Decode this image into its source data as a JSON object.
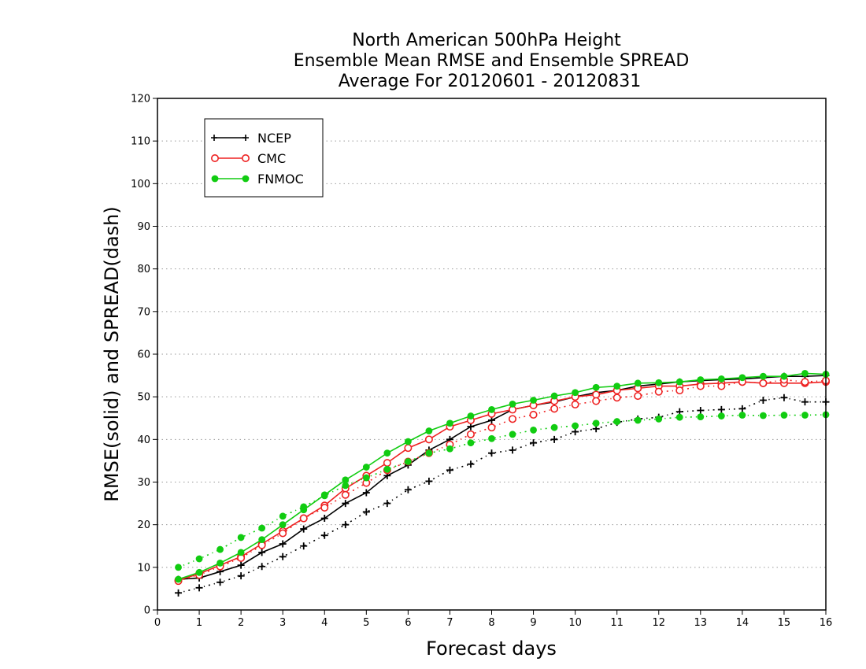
{
  "chart_data": {
    "type": "line",
    "title_lines": [
      "North American 500hPa Height",
      "Ensemble Mean RMSE and Ensemble SPREAD",
      "Average For 20120601 - 20120831"
    ],
    "xlabel": "Forecast days",
    "ylabel": "RMSE(solid) and SPREAD(dash)",
    "xlim": [
      0,
      16
    ],
    "ylim": [
      0,
      120
    ],
    "xticks": [
      "0",
      "1",
      "2",
      "3",
      "4",
      "5",
      "6",
      "7",
      "8",
      "9",
      "10",
      "11",
      "12",
      "13",
      "14",
      "15",
      "16"
    ],
    "yticks": [
      "0",
      "10",
      "20",
      "30",
      "40",
      "50",
      "60",
      "70",
      "80",
      "90",
      "100",
      "110",
      "120"
    ],
    "grid": "horizontal dotted",
    "legend_position": "top-left",
    "series": [
      {
        "name": "NCEP",
        "color": "#000000",
        "marker": "plus",
        "x": [
          0.5,
          1,
          1.5,
          2,
          2.5,
          3,
          3.5,
          4,
          4.5,
          5,
          5.5,
          6,
          6.5,
          7,
          7.5,
          8,
          8.5,
          9,
          9.5,
          10,
          10.5,
          11,
          11.5,
          12,
          12.5,
          13,
          13.5,
          14,
          14.5,
          15,
          15.5,
          16
        ],
        "rmse": [
          7.2,
          7.5,
          9.0,
          10.5,
          13.5,
          15.5,
          19.0,
          21.5,
          25.0,
          27.5,
          31.5,
          34.0,
          37.5,
          40.0,
          43.0,
          44.5,
          47.0,
          48.0,
          48.8,
          50.0,
          51.0,
          51.5,
          52.5,
          53.0,
          53.5,
          53.8,
          54.0,
          54.2,
          54.5,
          54.8,
          54.8,
          55.0
        ],
        "spread": [
          4.0,
          5.2,
          6.5,
          8.0,
          10.2,
          12.5,
          15.0,
          17.5,
          20.0,
          23.0,
          25.0,
          28.2,
          30.2,
          32.8,
          34.2,
          36.8,
          37.5,
          39.2,
          40.0,
          41.8,
          42.5,
          44.0,
          44.8,
          45.2,
          46.5,
          46.8,
          47.0,
          47.2,
          49.2,
          49.8,
          48.8,
          48.8
        ]
      },
      {
        "name": "CMC",
        "color": "#ee2222",
        "marker": "open-circle",
        "x": [
          0.5,
          1,
          1.5,
          2,
          2.5,
          3,
          3.5,
          4,
          4.5,
          5,
          5.5,
          6,
          6.5,
          7,
          7.5,
          8,
          8.5,
          9,
          9.5,
          10,
          10.5,
          11,
          11.5,
          12,
          12.5,
          13,
          13.5,
          14,
          14.5,
          15,
          15.5,
          16
        ],
        "rmse": [
          7.0,
          8.5,
          10.5,
          12.5,
          15.5,
          18.5,
          21.5,
          24.5,
          28.5,
          31.5,
          34.5,
          38.0,
          40.0,
          43.0,
          44.5,
          46.0,
          47.0,
          48.0,
          49.0,
          50.0,
          50.5,
          51.5,
          52.0,
          52.5,
          52.5,
          53.0,
          53.2,
          53.5,
          53.2,
          53.2,
          53.2,
          53.5
        ],
        "spread": [
          6.8,
          8.2,
          10.2,
          12.2,
          15.2,
          18.0,
          21.5,
          24.0,
          27.0,
          29.8,
          32.8,
          34.8,
          36.8,
          38.8,
          41.2,
          42.8,
          44.8,
          45.8,
          47.2,
          48.2,
          49.0,
          49.8,
          50.2,
          51.2,
          51.5,
          52.5,
          52.5,
          53.5,
          53.2,
          54.0,
          53.5,
          53.8
        ]
      },
      {
        "name": "FNMOC",
        "color": "#11cc11",
        "marker": "filled-circle",
        "x": [
          0.5,
          1,
          1.5,
          2,
          2.5,
          3,
          3.5,
          4,
          4.5,
          5,
          5.5,
          6,
          6.5,
          7,
          7.5,
          8,
          8.5,
          9,
          9.5,
          10,
          10.5,
          11,
          11.5,
          12,
          12.5,
          13,
          13.5,
          14,
          14.5,
          15,
          15.5,
          16
        ],
        "rmse": [
          7.2,
          8.8,
          11.0,
          13.5,
          16.5,
          20.0,
          23.5,
          27.0,
          30.5,
          33.5,
          36.8,
          39.5,
          42.0,
          43.8,
          45.5,
          47.0,
          48.3,
          49.2,
          50.2,
          51.0,
          52.2,
          52.5,
          53.2,
          53.3,
          53.5,
          54.0,
          54.2,
          54.5,
          54.8,
          54.8,
          55.5,
          55.3
        ],
        "spread": [
          10.0,
          12.0,
          14.2,
          17.0,
          19.2,
          22.0,
          24.2,
          26.8,
          29.2,
          31.0,
          33.0,
          34.8,
          36.8,
          37.8,
          39.2,
          40.2,
          41.2,
          42.2,
          42.8,
          43.2,
          43.8,
          44.2,
          44.5,
          44.8,
          45.2,
          45.3,
          45.5,
          45.7,
          45.6,
          45.7,
          45.7,
          45.8
        ]
      }
    ]
  }
}
